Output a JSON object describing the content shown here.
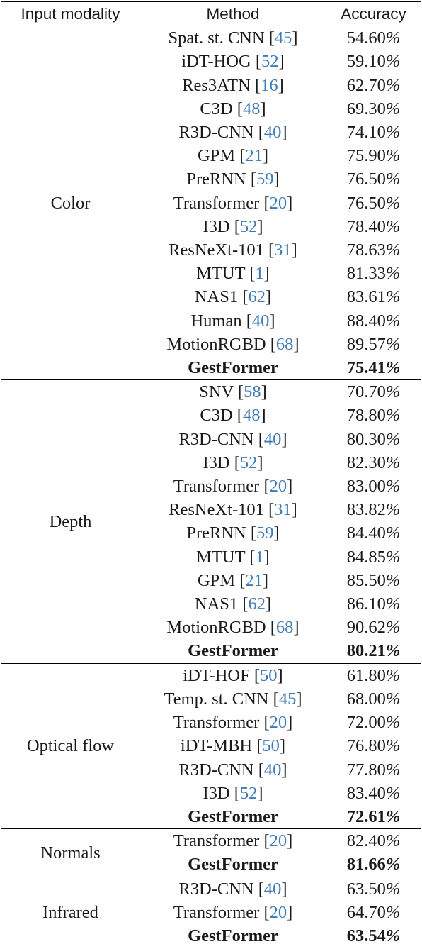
{
  "headers": [
    "Input modality",
    "Method",
    "Accuracy"
  ],
  "groups": [
    {
      "modality": "Color",
      "rows": [
        {
          "method": "Spat. st. CNN",
          "ref": "45",
          "accuracy": "54.60",
          "bold": false
        },
        {
          "method": "iDT-HOG",
          "ref": "52",
          "accuracy": "59.10",
          "bold": false
        },
        {
          "method": "Res3ATN",
          "ref": "16",
          "accuracy": "62.70",
          "bold": false
        },
        {
          "method": "C3D",
          "ref": "48",
          "accuracy": "69.30",
          "bold": false
        },
        {
          "method": "R3D-CNN",
          "ref": "40",
          "accuracy": "74.10",
          "bold": false
        },
        {
          "method": "GPM",
          "ref": "21",
          "accuracy": "75.90",
          "bold": false
        },
        {
          "method": "PreRNN",
          "ref": "59",
          "accuracy": "76.50",
          "bold": false
        },
        {
          "method": "Transformer",
          "ref": "20",
          "accuracy": "76.50",
          "bold": false
        },
        {
          "method": "I3D",
          "ref": "52",
          "accuracy": "78.40",
          "bold": false
        },
        {
          "method": "ResNeXt-101",
          "ref": "31",
          "accuracy": "78.63",
          "bold": false
        },
        {
          "method": "MTUT",
          "ref": "1",
          "accuracy": "81.33",
          "bold": false
        },
        {
          "method": "NAS1",
          "ref": "62",
          "accuracy": "83.61",
          "bold": false
        },
        {
          "method": "Human",
          "ref": "40",
          "accuracy": "88.40",
          "bold": false
        },
        {
          "method": "MotionRGBD",
          "ref": "68",
          "accuracy": "89.57",
          "bold": false
        },
        {
          "method": "GestFormer",
          "ref": "",
          "accuracy": "75.41",
          "bold": true
        }
      ]
    },
    {
      "modality": "Depth",
      "rows": [
        {
          "method": "SNV",
          "ref": "58",
          "accuracy": "70.70",
          "bold": false
        },
        {
          "method": "C3D",
          "ref": "48",
          "accuracy": "78.80",
          "bold": false
        },
        {
          "method": "R3D-CNN",
          "ref": "40",
          "accuracy": "80.30",
          "bold": false
        },
        {
          "method": "I3D",
          "ref": "52",
          "accuracy": "82.30",
          "bold": false
        },
        {
          "method": "Transformer",
          "ref": "20",
          "accuracy": "83.00",
          "bold": false
        },
        {
          "method": "ResNeXt-101",
          "ref": "31",
          "accuracy": "83.82",
          "bold": false
        },
        {
          "method": "PreRNN",
          "ref": "59",
          "accuracy": "84.40",
          "bold": false
        },
        {
          "method": "MTUT",
          "ref": "1",
          "accuracy": "84.85",
          "bold": false
        },
        {
          "method": "GPM",
          "ref": "21",
          "accuracy": "85.50",
          "bold": false
        },
        {
          "method": "NAS1",
          "ref": "62",
          "accuracy": "86.10",
          "bold": false
        },
        {
          "method": "MotionRGBD",
          "ref": "68",
          "accuracy": "90.62",
          "bold": false
        },
        {
          "method": "GestFormer",
          "ref": "",
          "accuracy": "80.21",
          "bold": true
        }
      ]
    },
    {
      "modality": "Optical flow",
      "rows": [
        {
          "method": "iDT-HOF",
          "ref": "50",
          "accuracy": "61.80",
          "bold": false
        },
        {
          "method": "Temp. st. CNN",
          "ref": "45",
          "accuracy": "68.00",
          "bold": false
        },
        {
          "method": "Transformer",
          "ref": "20",
          "accuracy": "72.00",
          "bold": false
        },
        {
          "method": "iDT-MBH",
          "ref": "50",
          "accuracy": "76.80",
          "bold": false
        },
        {
          "method": "R3D-CNN",
          "ref": "40",
          "accuracy": "77.80",
          "bold": false
        },
        {
          "method": "I3D",
          "ref": "52",
          "accuracy": "83.40",
          "bold": false
        },
        {
          "method": "GestFormer",
          "ref": "",
          "accuracy": "72.61",
          "bold": true
        }
      ]
    },
    {
      "modality": "Normals",
      "rows": [
        {
          "method": "Transformer",
          "ref": "20",
          "accuracy": "82.40",
          "bold": false
        },
        {
          "method": "GestFormer",
          "ref": "",
          "accuracy": "81.66",
          "bold": true
        }
      ]
    },
    {
      "modality": "Infrared",
      "rows": [
        {
          "method": "R3D-CNN",
          "ref": "40",
          "accuracy": "63.50",
          "bold": false
        },
        {
          "method": "Transformer",
          "ref": "20",
          "accuracy": "64.70",
          "bold": false
        },
        {
          "method": "GestFormer",
          "ref": "",
          "accuracy": "63.54",
          "bold": true
        }
      ]
    }
  ],
  "percent_sign": "%"
}
